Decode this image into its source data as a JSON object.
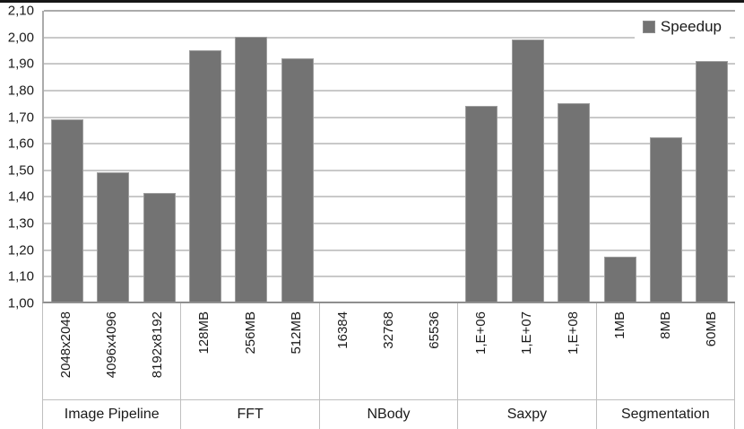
{
  "chart_data": {
    "type": "bar",
    "title": "",
    "series_name": "Speedup",
    "legend_position": "top-right",
    "ylim": [
      1.0,
      2.1
    ],
    "ytick_step": 0.1,
    "ytick_labels": [
      "2,10",
      "2,00",
      "1,90",
      "1,80",
      "1,70",
      "1,60",
      "1,50",
      "1,40",
      "1,30",
      "1,20",
      "1,10",
      "1,00"
    ],
    "grid": true,
    "bar_color": "#737373",
    "bar_border_color": "#9e9e9e",
    "groups": [
      {
        "label": "Image Pipeline",
        "categories": [
          "2048x2048",
          "4096x4096",
          "8192x8192"
        ],
        "values": [
          1.69,
          1.49,
          1.41
        ]
      },
      {
        "label": "FFT",
        "categories": [
          "128MB",
          "256MB",
          "512MB"
        ],
        "values": [
          1.95,
          2.0,
          1.92
        ]
      },
      {
        "label": "NBody",
        "categories": [
          "16384",
          "32768",
          "65536"
        ],
        "values": [
          null,
          null,
          null
        ]
      },
      {
        "label": "Saxpy",
        "categories": [
          "1,E+06",
          "1,E+07",
          "1,E+08"
        ],
        "values": [
          1.74,
          1.99,
          1.75
        ]
      },
      {
        "label": "Segmentation",
        "categories": [
          "1MB",
          "8MB",
          "60MB"
        ],
        "values": [
          1.17,
          1.62,
          1.91
        ]
      }
    ]
  },
  "legend": {
    "label": "Speedup",
    "swatch_color": "#737373"
  }
}
